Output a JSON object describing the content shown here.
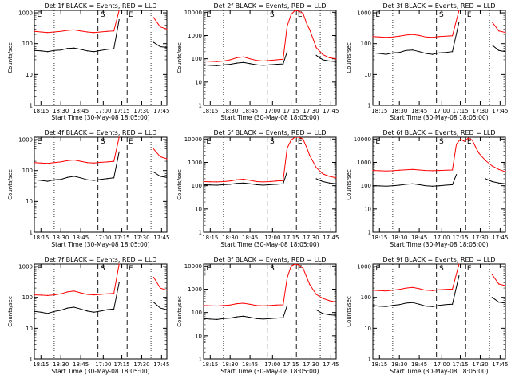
{
  "figure": {
    "xlabel": "Start Time (30-May-08 18:05:00)",
    "ylabel": "Counts/sec",
    "x_tick_labels": [
      "18:15",
      "18:30",
      "18:45",
      "17:00",
      "17:15",
      "17:30",
      "17:45"
    ],
    "y_tick_labels": [
      "1",
      "10",
      "100",
      "1000"
    ],
    "y_tick_labels_big": [
      "1",
      "10",
      "100",
      "1000",
      "10000"
    ],
    "colors": {
      "events": "#000000",
      "lld": "#ff0000"
    }
  },
  "chart_data": [
    {
      "type": "line",
      "title": "Det 1f BLACK = Events, RED = LLD",
      "ylim": [
        1,
        1200
      ],
      "markers": [
        "E",
        "S",
        "E"
      ],
      "x": [
        0,
        5,
        10,
        15,
        20,
        25,
        30,
        35,
        40,
        45,
        50,
        55,
        60,
        64,
        65,
        70,
        75,
        80,
        85,
        90,
        95,
        100
      ],
      "series": [
        {
          "name": "Events",
          "values": [
            60,
            58,
            55,
            60,
            62,
            70,
            72,
            65,
            58,
            55,
            60,
            65,
            68,
            600,
            null,
            null,
            null,
            null,
            null,
            110,
            80,
            75
          ]
        },
        {
          "name": "LLD",
          "values": [
            250,
            240,
            230,
            240,
            250,
            270,
            280,
            260,
            240,
            230,
            240,
            250,
            260,
            1200,
            null,
            null,
            null,
            null,
            null,
            700,
            350,
            300
          ]
        }
      ]
    },
    {
      "type": "line",
      "title": "Det 2f BLACK = Events, RED = LLD",
      "ylim": [
        1,
        12000
      ],
      "markers": [
        "E",
        "S",
        "E"
      ],
      "x": [
        0,
        5,
        10,
        15,
        20,
        25,
        30,
        35,
        40,
        45,
        50,
        55,
        60,
        63,
        66,
        69,
        72,
        75,
        78,
        80,
        85,
        90,
        95,
        100
      ],
      "series": [
        {
          "name": "Events",
          "values": [
            55,
            52,
            50,
            55,
            58,
            65,
            70,
            62,
            55,
            52,
            55,
            58,
            60,
            200,
            null,
            null,
            null,
            null,
            null,
            null,
            140,
            90,
            80,
            75
          ]
        },
        {
          "name": "LLD",
          "values": [
            80,
            78,
            75,
            80,
            90,
            110,
            120,
            100,
            85,
            80,
            85,
            90,
            95,
            2500,
            8000,
            12000,
            11000,
            9000,
            3000,
            1800,
            300,
            150,
            110,
            100
          ]
        }
      ]
    },
    {
      "type": "line",
      "title": "Det 3f BLACK = Events, RED = LLD",
      "ylim": [
        1,
        1200
      ],
      "markers": [
        "E",
        "S",
        "E"
      ],
      "x": [
        0,
        5,
        10,
        15,
        20,
        25,
        30,
        35,
        40,
        45,
        50,
        55,
        60,
        65,
        66,
        70,
        75,
        80,
        85,
        90,
        95,
        100
      ],
      "series": [
        {
          "name": "Events",
          "values": [
            50,
            48,
            45,
            50,
            52,
            60,
            62,
            55,
            48,
            45,
            50,
            52,
            55,
            500,
            null,
            null,
            null,
            null,
            null,
            90,
            60,
            55
          ]
        },
        {
          "name": "LLD",
          "values": [
            170,
            165,
            160,
            165,
            175,
            190,
            200,
            185,
            165,
            160,
            170,
            175,
            180,
            1200,
            null,
            null,
            null,
            null,
            null,
            500,
            260,
            230
          ]
        }
      ]
    },
    {
      "type": "line",
      "title": "Det 4f BLACK = Events, RED = LLD",
      "ylim": [
        1,
        1200
      ],
      "markers": [
        "E",
        "S",
        "E"
      ],
      "x": [
        0,
        5,
        10,
        15,
        20,
        25,
        30,
        35,
        40,
        45,
        50,
        55,
        60,
        64,
        65,
        70,
        75,
        80,
        85,
        90,
        95,
        100
      ],
      "series": [
        {
          "name": "Events",
          "values": [
            50,
            48,
            45,
            50,
            52,
            60,
            65,
            58,
            50,
            48,
            52,
            55,
            58,
            400,
            null,
            null,
            null,
            null,
            null,
            90,
            65,
            60
          ]
        },
        {
          "name": "LLD",
          "values": [
            180,
            175,
            170,
            180,
            190,
            210,
            220,
            200,
            180,
            175,
            185,
            190,
            200,
            1200,
            null,
            null,
            null,
            null,
            null,
            500,
            280,
            240
          ]
        }
      ]
    },
    {
      "type": "line",
      "title": "Det 5f BLACK = Events, RED = LLD",
      "ylim": [
        1,
        12000
      ],
      "markers": [
        "E",
        "S",
        "E"
      ],
      "x": [
        0,
        5,
        10,
        15,
        20,
        25,
        30,
        35,
        40,
        45,
        50,
        55,
        60,
        63,
        66,
        69,
        72,
        75,
        78,
        80,
        85,
        90,
        95,
        100
      ],
      "series": [
        {
          "name": "Events",
          "values": [
            110,
            108,
            105,
            110,
            115,
            125,
            130,
            120,
            110,
            105,
            110,
            115,
            120,
            400,
            null,
            null,
            null,
            null,
            null,
            null,
            200,
            150,
            130,
            120
          ]
        },
        {
          "name": "LLD",
          "values": [
            150,
            148,
            145,
            150,
            160,
            180,
            190,
            170,
            150,
            145,
            150,
            160,
            165,
            4000,
            9000,
            12000,
            12000,
            10000,
            4000,
            2000,
            600,
            320,
            250,
            220
          ]
        }
      ]
    },
    {
      "type": "line",
      "title": "Det 6f BLACK = Events, RED = LLD",
      "ylim": [
        1,
        12000
      ],
      "markers": [
        "E",
        "S",
        "E"
      ],
      "x": [
        0,
        5,
        10,
        15,
        20,
        25,
        30,
        35,
        40,
        45,
        50,
        55,
        60,
        63,
        66,
        69,
        72,
        75,
        78,
        80,
        85,
        90,
        95,
        100
      ],
      "series": [
        {
          "name": "Events",
          "values": [
            100,
            98,
            95,
            100,
            105,
            115,
            120,
            110,
            100,
            95,
            100,
            105,
            110,
            300,
            null,
            null,
            null,
            null,
            null,
            null,
            200,
            150,
            130,
            120
          ]
        },
        {
          "name": "LLD",
          "values": [
            450,
            440,
            430,
            440,
            460,
            480,
            500,
            470,
            450,
            440,
            450,
            460,
            470,
            6000,
            10000,
            8000,
            11000,
            9000,
            4000,
            2500,
            1200,
            700,
            500,
            400
          ]
        }
      ]
    },
    {
      "type": "line",
      "title": "Det 7f BLACK = Events, RED = LLD",
      "ylim": [
        1,
        1200
      ],
      "markers": [
        "E",
        "S",
        "E"
      ],
      "x": [
        0,
        5,
        10,
        15,
        20,
        25,
        30,
        35,
        40,
        45,
        50,
        55,
        60,
        64,
        65,
        70,
        75,
        80,
        85,
        90,
        95,
        100
      ],
      "series": [
        {
          "name": "Events",
          "values": [
            35,
            33,
            30,
            35,
            38,
            45,
            48,
            42,
            36,
            33,
            36,
            40,
            42,
            300,
            null,
            null,
            null,
            null,
            null,
            70,
            45,
            40
          ]
        },
        {
          "name": "LLD",
          "values": [
            120,
            118,
            115,
            120,
            130,
            150,
            160,
            140,
            125,
            120,
            125,
            130,
            135,
            1200,
            null,
            null,
            null,
            null,
            null,
            450,
            200,
            170
          ]
        }
      ]
    },
    {
      "type": "line",
      "title": "Det 8f BLACK = Events, RED = LLD",
      "ylim": [
        1,
        12000
      ],
      "markers": [
        "E",
        "S",
        "E"
      ],
      "x": [
        0,
        5,
        10,
        15,
        20,
        25,
        30,
        35,
        40,
        45,
        50,
        55,
        60,
        63,
        66,
        69,
        72,
        75,
        78,
        80,
        85,
        90,
        95,
        100
      ],
      "series": [
        {
          "name": "Events",
          "values": [
            55,
            52,
            50,
            55,
            58,
            65,
            70,
            62,
            55,
            52,
            55,
            58,
            60,
            200,
            null,
            null,
            null,
            null,
            null,
            null,
            130,
            90,
            80,
            75
          ]
        },
        {
          "name": "LLD",
          "values": [
            200,
            195,
            190,
            200,
            210,
            240,
            250,
            225,
            200,
            195,
            200,
            210,
            215,
            3000,
            10000,
            12000,
            11000,
            8000,
            3000,
            1600,
            600,
            400,
            320,
            280
          ]
        }
      ]
    },
    {
      "type": "line",
      "title": "Det 9f BLACK = Events, RED = LLD",
      "ylim": [
        1,
        1200
      ],
      "markers": [
        "E",
        "S",
        "E"
      ],
      "x": [
        0,
        5,
        10,
        15,
        20,
        25,
        30,
        35,
        40,
        45,
        50,
        55,
        60,
        65,
        66,
        70,
        75,
        80,
        85,
        90,
        95,
        100
      ],
      "series": [
        {
          "name": "Events",
          "values": [
            55,
            52,
            50,
            55,
            58,
            65,
            68,
            60,
            52,
            50,
            55,
            58,
            60,
            500,
            null,
            null,
            null,
            null,
            null,
            100,
            70,
            65
          ]
        },
        {
          "name": "LLD",
          "values": [
            170,
            165,
            160,
            170,
            180,
            200,
            210,
            190,
            170,
            165,
            175,
            180,
            185,
            1200,
            null,
            null,
            null,
            null,
            null,
            550,
            270,
            240
          ]
        }
      ]
    }
  ]
}
